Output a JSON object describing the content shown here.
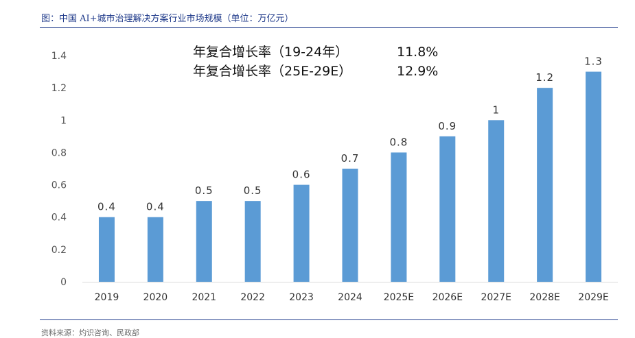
{
  "header": {
    "title": "图：中国 AI+城市治理解决方案行业市场规模（单位：万亿元）"
  },
  "footer": {
    "source": "资料来源：灼识咨询、民政部"
  },
  "chart_data": {
    "type": "bar",
    "categories": [
      "2019",
      "2020",
      "2021",
      "2022",
      "2023",
      "2024",
      "2025E",
      "2026E",
      "2027E",
      "2028E",
      "2029E"
    ],
    "series": [
      {
        "values": [
          0.4,
          0.4,
          0.5,
          0.5,
          0.6,
          0.7,
          0.8,
          0.9,
          1,
          1.2,
          1.3
        ]
      }
    ],
    "data_labels": [
      "0.4",
      "0.4",
      "0.5",
      "0.5",
      "0.6",
      "0.7",
      "0.8",
      "0.9",
      "1",
      "1.2",
      "1.3"
    ],
    "yticks": [
      "0",
      "0.2",
      "0.4",
      "0.6",
      "0.8",
      "1",
      "1.2",
      "1.4"
    ],
    "ylim": [
      0,
      1.4
    ],
    "grid": false,
    "bar_color": "#5b9bd5",
    "annotations": [
      {
        "label": "年复合增长率（19-24年）",
        "value": "11.8%"
      },
      {
        "label": "年复合增长率（25E-29E）",
        "value": "12.9%"
      }
    ]
  }
}
